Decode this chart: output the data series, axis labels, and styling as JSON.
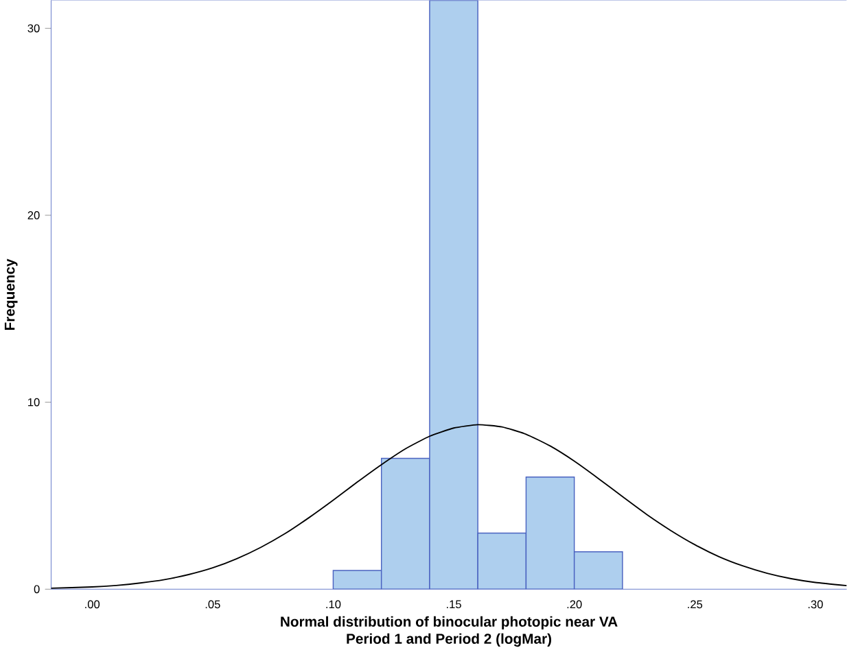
{
  "chart_data": {
    "type": "histogram",
    "xlabel": "Normal distribution of binocular photopic near VA\nPeriod 1 and Period 2 (logMar)",
    "ylabel": "Frequency",
    "bins": [
      0.1,
      0.12,
      0.14,
      0.16,
      0.18,
      0.2,
      0.22
    ],
    "values": [
      1,
      7,
      31.5,
      3,
      6,
      2
    ],
    "color": "#aecfee",
    "series": [
      {
        "type": "line",
        "color": "#000000",
        "x": [
          -0.017,
          0.0,
          0.01,
          0.02,
          0.03,
          0.04,
          0.05,
          0.06,
          0.07,
          0.08,
          0.09,
          0.1,
          0.11,
          0.12,
          0.13,
          0.14,
          0.15,
          0.16,
          0.17,
          0.18,
          0.19,
          0.2,
          0.21,
          0.22,
          0.23,
          0.24,
          0.25,
          0.26,
          0.27,
          0.28,
          0.29,
          0.3,
          0.313
        ],
        "values": [
          0.05,
          0.12,
          0.2,
          0.33,
          0.51,
          0.78,
          1.14,
          1.63,
          2.24,
          2.97,
          3.83,
          4.76,
          5.73,
          6.66,
          7.51,
          8.18,
          8.62,
          8.8,
          8.68,
          8.29,
          7.66,
          6.85,
          5.92,
          4.95,
          4.0,
          3.14,
          2.38,
          1.74,
          1.24,
          0.85,
          0.56,
          0.36,
          0.19
        ]
      }
    ],
    "xlim": [
      -0.017,
      0.313
    ],
    "ylim": [
      0,
      31.5
    ],
    "xticks": [
      {
        "value": 0.0,
        "label": ".00"
      },
      {
        "value": 0.05,
        "label": ".05"
      },
      {
        "value": 0.1,
        "label": ".10"
      },
      {
        "value": 0.15,
        "label": ".15"
      },
      {
        "value": 0.2,
        "label": ".20"
      },
      {
        "value": 0.25,
        "label": ".25"
      },
      {
        "value": 0.3,
        "label": ".30"
      }
    ],
    "yticks": [
      0,
      10,
      20,
      30
    ],
    "grid": false
  }
}
